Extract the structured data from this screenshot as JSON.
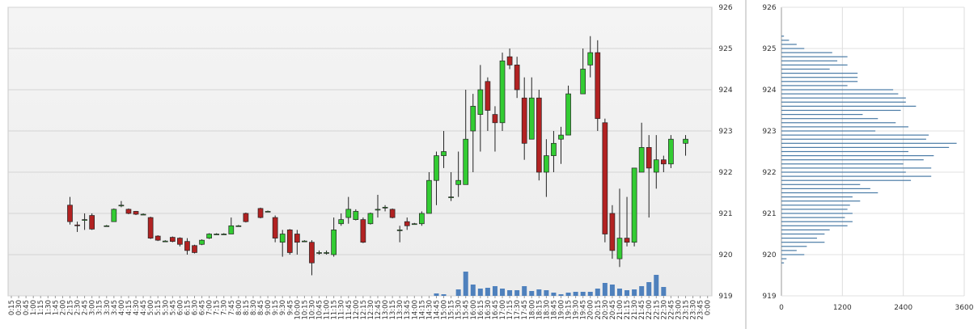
{
  "chart_data": [
    {
      "type": "candlestick",
      "grid": true,
      "up_color": "#33cc33",
      "down_color": "#b22222",
      "volume_color": "#4f81bd",
      "categories": [
        "0:15",
        "0:30",
        "0:45",
        "1:00",
        "1:15",
        "1:30",
        "1:45",
        "2:00",
        "2:15",
        "2:30",
        "2:45",
        "3:00",
        "3:15",
        "3:30",
        "3:45",
        "4:00",
        "4:15",
        "4:30",
        "4:45",
        "5:00",
        "5:15",
        "5:30",
        "5:45",
        "6:00",
        "6:15",
        "6:30",
        "6:45",
        "7:00",
        "7:15",
        "7:30",
        "7:45",
        "8:00",
        "8:15",
        "8:30",
        "8:45",
        "9:00",
        "9:15",
        "9:30",
        "9:45",
        "10:00",
        "10:15",
        "10:30",
        "10:45",
        "11:00",
        "11:15",
        "11:30",
        "11:45",
        "12:00",
        "12:15",
        "12:30",
        "12:45",
        "13:00",
        "13:15",
        "13:30",
        "13:45",
        "14:00",
        "14:15",
        "14:30",
        "14:45",
        "15:00",
        "15:15",
        "15:30",
        "15:45",
        "16:00",
        "16:15",
        "16:30",
        "16:45",
        "17:00",
        "17:15",
        "17:30",
        "17:45",
        "18:00",
        "18:15",
        "18:30",
        "18:45",
        "19:00",
        "19:15",
        "19:30",
        "19:45",
        "20:00",
        "20:15",
        "20:30",
        "20:45",
        "21:00",
        "21:15",
        "21:30",
        "21:45",
        "22:00",
        "22:15",
        "22:30",
        "22:45",
        "23:00",
        "23:15",
        "23:30",
        "23:45",
        "0:00"
      ],
      "open": [
        null,
        null,
        null,
        null,
        null,
        null,
        null,
        null,
        921.2,
        920.72,
        920.85,
        920.95,
        null,
        920.7,
        920.8,
        921.2,
        921.1,
        921.05,
        920.98,
        920.9,
        920.45,
        920.33,
        920.42,
        920.4,
        920.32,
        920.22,
        920.25,
        920.4,
        920.5,
        920.5,
        920.5,
        920.7,
        921.0,
        null,
        921.12,
        921.05,
        920.9,
        920.3,
        920.6,
        920.5,
        920.33,
        920.3,
        920.05,
        920.05,
        920.0,
        920.75,
        920.9,
        920.85,
        920.85,
        920.75,
        921.1,
        921.15,
        921.1,
        920.6,
        920.8,
        920.75,
        920.75,
        921.0,
        921.8,
        922.4,
        921.4,
        921.7,
        921.7,
        923.0,
        923.4,
        924.2,
        923.4,
        923.2,
        924.8,
        924.6,
        923.8,
        922.8,
        923.8,
        922.0,
        922.4,
        922.8,
        922.9,
        null,
        923.9,
        924.6,
        924.9,
        923.2,
        921.0,
        919.9,
        920.4,
        920.3,
        922.0,
        922.6,
        922.0,
        922.3,
        922.2,
        null,
        922.7,
        null,
        null,
        null
      ],
      "high": [
        null,
        null,
        null,
        null,
        null,
        null,
        null,
        null,
        921.4,
        920.8,
        921.0,
        921.0,
        null,
        920.72,
        921.12,
        921.3,
        921.12,
        921.06,
        921.0,
        920.92,
        920.47,
        920.35,
        920.44,
        920.42,
        920.4,
        920.24,
        920.37,
        920.52,
        920.52,
        920.52,
        920.9,
        920.72,
        921.02,
        null,
        921.14,
        921.07,
        920.95,
        920.6,
        920.62,
        920.6,
        920.35,
        920.35,
        920.1,
        920.1,
        920.9,
        921.0,
        921.4,
        921.1,
        920.9,
        921.02,
        921.45,
        921.2,
        921.12,
        920.7,
        920.9,
        920.77,
        921.05,
        922.0,
        922.5,
        923.0,
        922.0,
        922.5,
        924.0,
        923.9,
        924.6,
        924.3,
        923.6,
        924.9,
        925.0,
        924.8,
        924.3,
        924.3,
        924.0,
        922.8,
        923.0,
        923.1,
        924.1,
        null,
        925.0,
        925.3,
        925.2,
        923.3,
        921.2,
        921.6,
        921.4,
        922.1,
        923.2,
        922.9,
        922.9,
        922.4,
        922.9,
        null,
        922.9,
        null,
        null,
        null
      ],
      "low": [
        null,
        null,
        null,
        null,
        null,
        null,
        null,
        null,
        920.73,
        920.55,
        920.6,
        920.6,
        null,
        920.68,
        920.8,
        921.15,
        920.98,
        920.96,
        920.96,
        920.38,
        920.33,
        920.31,
        920.3,
        920.2,
        920.0,
        920.03,
        920.23,
        920.38,
        920.48,
        920.48,
        920.5,
        920.68,
        920.78,
        null,
        920.88,
        921.03,
        920.3,
        919.95,
        920.0,
        920.0,
        920.31,
        919.5,
        920.0,
        920.0,
        919.95,
        920.7,
        920.75,
        920.83,
        920.28,
        920.73,
        920.9,
        921.05,
        920.88,
        920.3,
        920.6,
        920.73,
        920.7,
        921.0,
        921.2,
        922.1,
        921.3,
        921.4,
        921.7,
        922.0,
        922.5,
        923.0,
        922.5,
        923.0,
        924.5,
        923.8,
        922.3,
        922.8,
        921.8,
        921.4,
        922.0,
        922.2,
        922.9,
        null,
        923.9,
        924.3,
        923.0,
        920.3,
        919.9,
        919.7,
        920.2,
        920.2,
        922.0,
        920.9,
        921.6,
        922.0,
        922.1,
        null,
        922.4,
        null,
        null,
        null
      ],
      "close": [
        null,
        null,
        null,
        null,
        null,
        null,
        null,
        null,
        920.8,
        920.7,
        920.85,
        920.62,
        null,
        920.7,
        921.1,
        921.2,
        921.0,
        920.98,
        920.98,
        920.4,
        920.35,
        920.33,
        920.32,
        920.25,
        920.1,
        920.05,
        920.35,
        920.5,
        920.5,
        920.5,
        920.7,
        920.7,
        920.8,
        null,
        920.9,
        921.05,
        920.4,
        920.5,
        920.05,
        920.3,
        920.33,
        919.8,
        920.05,
        920.05,
        920.6,
        920.85,
        921.1,
        921.05,
        920.3,
        921.0,
        921.1,
        921.15,
        920.9,
        920.6,
        920.7,
        920.75,
        921.0,
        921.8,
        922.4,
        922.5,
        921.4,
        921.8,
        922.8,
        923.6,
        924.0,
        923.5,
        923.2,
        924.7,
        924.6,
        924.0,
        922.7,
        923.8,
        922.0,
        922.4,
        922.7,
        922.9,
        923.9,
        null,
        924.5,
        924.9,
        923.3,
        920.5,
        920.1,
        920.4,
        920.3,
        922.1,
        922.6,
        922.1,
        922.3,
        922.2,
        922.8,
        null,
        922.8,
        null,
        null,
        null
      ],
      "volume": [
        null,
        null,
        null,
        null,
        null,
        null,
        null,
        null,
        null,
        null,
        null,
        null,
        null,
        null,
        null,
        null,
        null,
        null,
        null,
        null,
        null,
        null,
        null,
        null,
        null,
        null,
        null,
        null,
        null,
        null,
        null,
        null,
        null,
        null,
        null,
        null,
        null,
        null,
        null,
        null,
        null,
        null,
        null,
        null,
        null,
        null,
        null,
        null,
        null,
        null,
        null,
        null,
        null,
        null,
        null,
        null,
        null,
        null,
        3,
        2,
        null,
        8,
        30,
        14,
        9,
        10,
        12,
        9,
        7,
        7,
        12,
        6,
        8,
        7,
        4,
        2,
        4,
        5,
        5,
        5,
        9,
        16,
        14,
        9,
        7,
        8,
        12,
        17,
        26,
        11,
        null,
        null,
        null,
        null,
        null,
        null
      ],
      "ylim": [
        919,
        926
      ],
      "yticks": [
        919,
        920,
        921,
        922,
        923,
        924,
        925,
        926
      ]
    },
    {
      "type": "bar",
      "orientation": "horizontal",
      "grid": true,
      "color": "#4a7ba6",
      "y": [
        925.3,
        925.2,
        925.1,
        925.0,
        924.9,
        924.8,
        924.7,
        924.6,
        924.5,
        924.4,
        924.3,
        924.2,
        924.1,
        924.0,
        923.9,
        923.8,
        923.7,
        923.6,
        923.5,
        923.4,
        923.3,
        923.2,
        923.1,
        923.0,
        922.9,
        922.8,
        922.7,
        922.6,
        922.5,
        922.4,
        922.3,
        922.2,
        922.1,
        922.0,
        921.9,
        921.8,
        921.7,
        921.6,
        921.5,
        921.4,
        921.3,
        921.2,
        921.1,
        921.0,
        920.9,
        920.8,
        920.7,
        920.6,
        920.5,
        920.4,
        920.3,
        920.2,
        920.1,
        920.0,
        919.9,
        919.8
      ],
      "values": [
        50,
        150,
        300,
        450,
        1000,
        1300,
        1100,
        1300,
        950,
        1500,
        1500,
        1500,
        1300,
        2200,
        2300,
        2450,
        2450,
        2650,
        2350,
        1600,
        1900,
        2250,
        2500,
        1850,
        2900,
        2850,
        3450,
        3300,
        2500,
        3000,
        2800,
        2400,
        2950,
        2450,
        2950,
        2550,
        1550,
        1750,
        1900,
        1400,
        1550,
        1350,
        1300,
        1400,
        1250,
        1400,
        1300,
        950,
        850,
        700,
        850,
        500,
        300,
        450,
        100,
        50
      ],
      "xlim": [
        0,
        3600
      ],
      "xticks": [
        0,
        1200,
        2400,
        3600
      ],
      "ylim": [
        919,
        926
      ],
      "yticks": [
        919,
        920,
        921,
        922,
        923,
        924,
        925,
        926
      ]
    }
  ]
}
